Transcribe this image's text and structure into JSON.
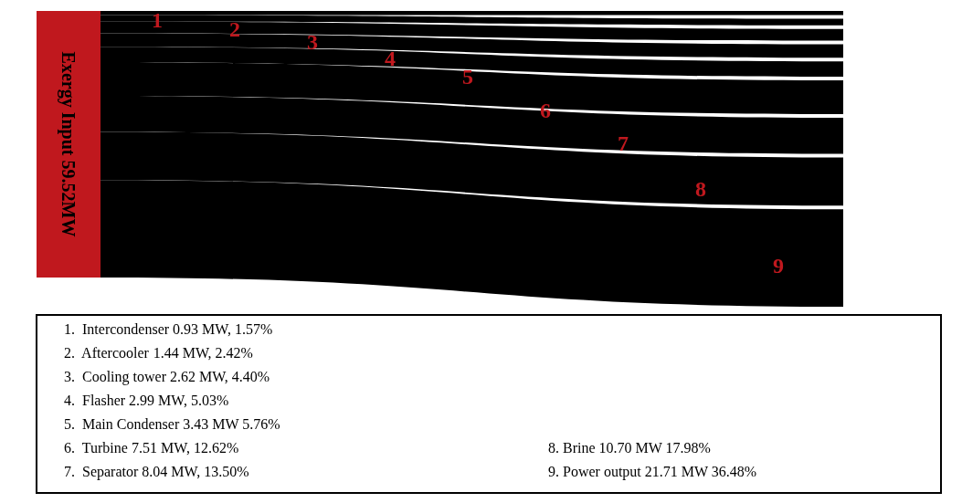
{
  "chart_data": {
    "type": "other",
    "title": "Exergy Input 59.52MW",
    "categories": [
      "1.  Intercondenser",
      "2.  Aftercooler",
      "3.  Cooling tower",
      "4.  Flasher",
      "5.  Main Condenser",
      "6.  Turbine",
      "7.  Separator",
      "8. Brine",
      "9. Power output"
    ],
    "values": [
      0.93,
      1.44,
      2.62,
      2.99,
      3.43,
      7.51,
      8.04,
      10.7,
      21.71
    ],
    "value_labels": [
      "0.93",
      "1.44",
      "2.62",
      "2.99",
      "3.43",
      "7.51",
      "8.04",
      "10.70",
      "21.71"
    ],
    "annotations": [
      "1",
      "2",
      "3",
      "4",
      "5",
      "6",
      "7",
      "8",
      "9",
      "MW, 1.57%",
      "MW, 2.42%",
      "MW, 4.40%",
      "MW, 5.03%",
      "MW 5.76%",
      "MW, 12.62%",
      "MW, 13.50%",
      "MW 17.98%",
      "MW 36.48%"
    ],
    "colors": [
      "#000000",
      "#000000",
      "#000000",
      "#000000",
      "#000000",
      "#000000",
      "#000000",
      "#000000",
      "#000000"
    ]
  }
}
